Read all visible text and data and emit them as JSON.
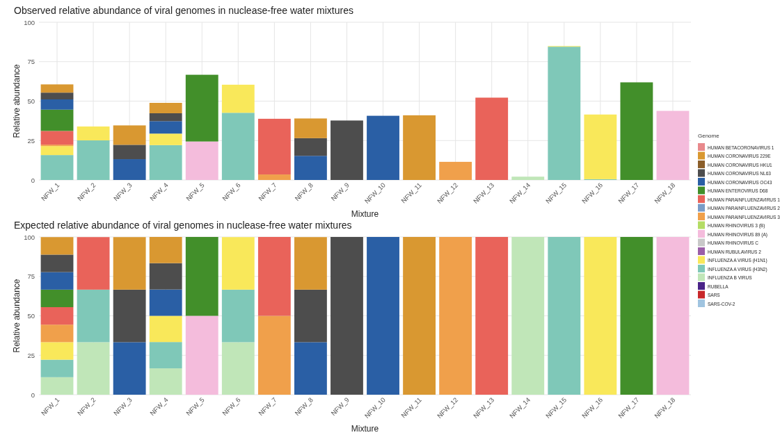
{
  "chart_data": [
    {
      "type": "bar",
      "stacked": true,
      "title": "Observed relative abundance of viral genomes in nuclease-free water mixtures",
      "xlabel": "Mixture",
      "ylabel": "Relative abundance",
      "legend_title": "Genome",
      "legend": "right",
      "grid": true,
      "categories": [
        "NFW_1",
        "NFW_2",
        "NFW_3",
        "NFW_4",
        "NFW_5",
        "NFW_6",
        "NFW_7",
        "NFW_8",
        "NFW_9",
        "NFW_10",
        "NFW_11",
        "NFW_12",
        "NFW_13",
        "NFW_14",
        "NFW_15",
        "NFW_16",
        "NFW_17",
        "NFW_18"
      ],
      "ylim": [
        0,
        100
      ],
      "yticks": [
        0,
        25,
        50,
        75,
        100
      ],
      "series": [
        {
          "name": "SARS-COV-2",
          "color": "#a0c4e0",
          "values": [
            null,
            null,
            null,
            null,
            null,
            null,
            null,
            null,
            null,
            null,
            null,
            null,
            null,
            null,
            null,
            null,
            null,
            null
          ]
        },
        {
          "name": "SARS",
          "color": "#c8282a",
          "values": [
            null,
            null,
            null,
            null,
            null,
            null,
            null,
            null,
            null,
            null,
            null,
            null,
            null,
            null,
            null,
            null,
            null,
            null
          ]
        },
        {
          "name": "RUBELLA",
          "color": "#4a2488",
          "values": [
            null,
            null,
            null,
            null,
            null,
            null,
            null,
            null,
            null,
            null,
            null,
            null,
            null,
            null,
            null,
            null,
            null,
            null
          ]
        },
        {
          "name": "INFLUENZA B VIRUS",
          "color": "#c0e6b8",
          "values": [
            null,
            null,
            null,
            null,
            null,
            null,
            null,
            null,
            null,
            null,
            null,
            null,
            null,
            2.1,
            null,
            null,
            null,
            null
          ]
        },
        {
          "name": "INFLUENZA A VIRUS (H3N2)",
          "color": "#7fc8b8",
          "values": [
            15.8,
            25.1,
            null,
            22.1,
            null,
            42.6,
            null,
            null,
            null,
            null,
            null,
            null,
            null,
            null,
            84.5,
            0.5,
            null,
            null
          ]
        },
        {
          "name": "INFLUENZA A VIRUS (H1N1)",
          "color": "#f9e85a",
          "values": [
            5.7,
            8.8,
            null,
            7.3,
            null,
            17.8,
            null,
            null,
            null,
            null,
            null,
            null,
            null,
            null,
            0.4,
            41.0,
            null,
            null
          ]
        },
        {
          "name": "HUMAN RUBULAVIRUS 2",
          "color": "#9b5ea8",
          "values": [
            null,
            null,
            null,
            null,
            null,
            null,
            null,
            null,
            null,
            null,
            null,
            null,
            null,
            null,
            null,
            null,
            null,
            null
          ]
        },
        {
          "name": "HUMAN RHINOVIRUS C",
          "color": "#c8c8c8",
          "values": [
            null,
            null,
            null,
            null,
            null,
            null,
            null,
            null,
            null,
            null,
            null,
            null,
            null,
            null,
            null,
            null,
            null,
            null
          ]
        },
        {
          "name": "HUMAN RHINOVIRUS 89 (A)",
          "color": "#f4bcdc",
          "values": [
            null,
            null,
            null,
            null,
            24.4,
            null,
            null,
            null,
            null,
            null,
            null,
            null,
            null,
            null,
            null,
            null,
            null,
            43.8
          ]
        },
        {
          "name": "HUMAN RHINOVIRUS 3 (B)",
          "color": "#b4dc64",
          "values": [
            null,
            null,
            null,
            null,
            null,
            null,
            null,
            null,
            null,
            null,
            null,
            null,
            null,
            null,
            null,
            null,
            null,
            null
          ]
        },
        {
          "name": "HUMAN PARAINFLUENZAVIRUS 3",
          "color": "#f0a04b",
          "values": [
            0.9,
            null,
            null,
            null,
            null,
            null,
            3.5,
            null,
            null,
            null,
            null,
            11.5,
            null,
            null,
            null,
            null,
            null,
            null
          ]
        },
        {
          "name": "HUMAN PARAINFLUENZAVIRUS 2",
          "color": "#7a9cc7",
          "values": [
            null,
            null,
            null,
            null,
            null,
            null,
            null,
            null,
            null,
            null,
            null,
            null,
            null,
            null,
            null,
            null,
            null,
            null
          ]
        },
        {
          "name": "HUMAN PARAINFLUENZAVIRUS 1",
          "color": "#e9635a",
          "values": [
            8.7,
            null,
            null,
            null,
            null,
            null,
            35.3,
            null,
            null,
            null,
            null,
            null,
            52.2,
            null,
            null,
            null,
            null,
            null
          ]
        },
        {
          "name": "HUMAN ENTEROVIRUS D68",
          "color": "#428f2a",
          "values": [
            13.5,
            null,
            null,
            null,
            42.3,
            null,
            null,
            null,
            null,
            null,
            null,
            null,
            null,
            null,
            null,
            null,
            61.9,
            null
          ]
        },
        {
          "name": "HUMAN CORONAVIRUS OC43",
          "color": "#2a5fa5",
          "values": [
            6.5,
            null,
            13.2,
            7.9,
            null,
            null,
            null,
            15.3,
            null,
            40.7,
            null,
            null,
            null,
            null,
            null,
            null,
            null,
            null
          ]
        },
        {
          "name": "HUMAN CORONAVIRUS NL63",
          "color": "#4d4d4d",
          "values": [
            4.3,
            null,
            9.1,
            5.0,
            null,
            null,
            null,
            11.2,
            37.7,
            null,
            null,
            null,
            null,
            null,
            null,
            null,
            null,
            null
          ]
        },
        {
          "name": "HUMAN CORONAVIRUS HKU1",
          "color": "#8b5e2a",
          "values": [
            null,
            null,
            null,
            null,
            null,
            null,
            null,
            null,
            null,
            null,
            null,
            null,
            null,
            null,
            null,
            null,
            null,
            null
          ]
        },
        {
          "name": "HUMAN CORONAVIRUS 229E",
          "color": "#d99831",
          "values": [
            5.2,
            null,
            12.3,
            6.6,
            null,
            null,
            null,
            12.5,
            null,
            null,
            41.0,
            null,
            null,
            null,
            null,
            null,
            null,
            null
          ]
        },
        {
          "name": "HUMAN BETACORONAVIRUS 1",
          "color": "#e8898c",
          "values": [
            null,
            null,
            null,
            null,
            null,
            null,
            null,
            null,
            null,
            null,
            null,
            null,
            null,
            null,
            null,
            null,
            null,
            null
          ]
        }
      ]
    },
    {
      "type": "bar",
      "stacked": true,
      "title": "Expected relative abundance of viral genomes in nuclease-free water mixtures",
      "xlabel": "Mixture",
      "ylabel": "Relative abundance",
      "grid": true,
      "categories": [
        "NFW_1",
        "NFW_2",
        "NFW_3",
        "NFW_4",
        "NFW_5",
        "NFW_6",
        "NFW_7",
        "NFW_8",
        "NFW_9",
        "NFW_10",
        "NFW_11",
        "NFW_12",
        "NFW_13",
        "NFW_14",
        "NFW_15",
        "NFW_16",
        "NFW_17",
        "NFW_18"
      ],
      "ylim": [
        0,
        100
      ],
      "yticks": [
        0,
        25,
        50,
        75,
        100
      ],
      "series": [
        {
          "color": "#c0e6b8",
          "values": [
            11.1,
            33.3,
            null,
            16.7,
            null,
            33.3,
            null,
            null,
            null,
            null,
            null,
            null,
            null,
            100,
            null,
            null,
            null,
            null
          ]
        },
        {
          "color": "#7fc8b8",
          "values": [
            11.1,
            33.3,
            null,
            16.7,
            null,
            33.3,
            null,
            null,
            null,
            null,
            null,
            null,
            null,
            null,
            100,
            null,
            null,
            null
          ]
        },
        {
          "color": "#f9e85a",
          "values": [
            11.1,
            null,
            null,
            16.6,
            null,
            33.3,
            null,
            null,
            null,
            null,
            null,
            null,
            null,
            null,
            null,
            100,
            null,
            null
          ]
        },
        {
          "color": "#f4bcdc",
          "values": [
            null,
            null,
            null,
            null,
            50,
            null,
            null,
            null,
            null,
            null,
            null,
            null,
            null,
            null,
            null,
            null,
            null,
            100
          ]
        },
        {
          "color": "#f0a04b",
          "values": [
            11.1,
            null,
            null,
            null,
            null,
            null,
            50,
            null,
            null,
            null,
            null,
            100,
            null,
            null,
            null,
            null,
            null,
            null
          ]
        },
        {
          "color": "#e9635a",
          "values": [
            11.1,
            33.3,
            null,
            null,
            null,
            null,
            50,
            null,
            null,
            null,
            null,
            null,
            100,
            null,
            null,
            null,
            null,
            null
          ]
        },
        {
          "color": "#428f2a",
          "values": [
            11.1,
            null,
            null,
            null,
            50,
            null,
            null,
            null,
            null,
            null,
            null,
            null,
            null,
            null,
            null,
            null,
            100,
            null
          ]
        },
        {
          "color": "#2a5fa5",
          "values": [
            11.1,
            null,
            33.3,
            16.7,
            null,
            null,
            null,
            33.3,
            null,
            100,
            null,
            null,
            null,
            null,
            null,
            null,
            null,
            null
          ]
        },
        {
          "color": "#4d4d4d",
          "values": [
            11.1,
            null,
            33.3,
            16.7,
            null,
            null,
            null,
            33.3,
            100,
            null,
            null,
            null,
            null,
            null,
            null,
            null,
            null,
            null
          ]
        },
        {
          "color": "#d99831",
          "values": [
            11.1,
            null,
            33.3,
            16.6,
            null,
            null,
            null,
            33.3,
            null,
            null,
            100,
            null,
            null,
            null,
            null,
            null,
            null,
            null
          ]
        }
      ]
    }
  ]
}
